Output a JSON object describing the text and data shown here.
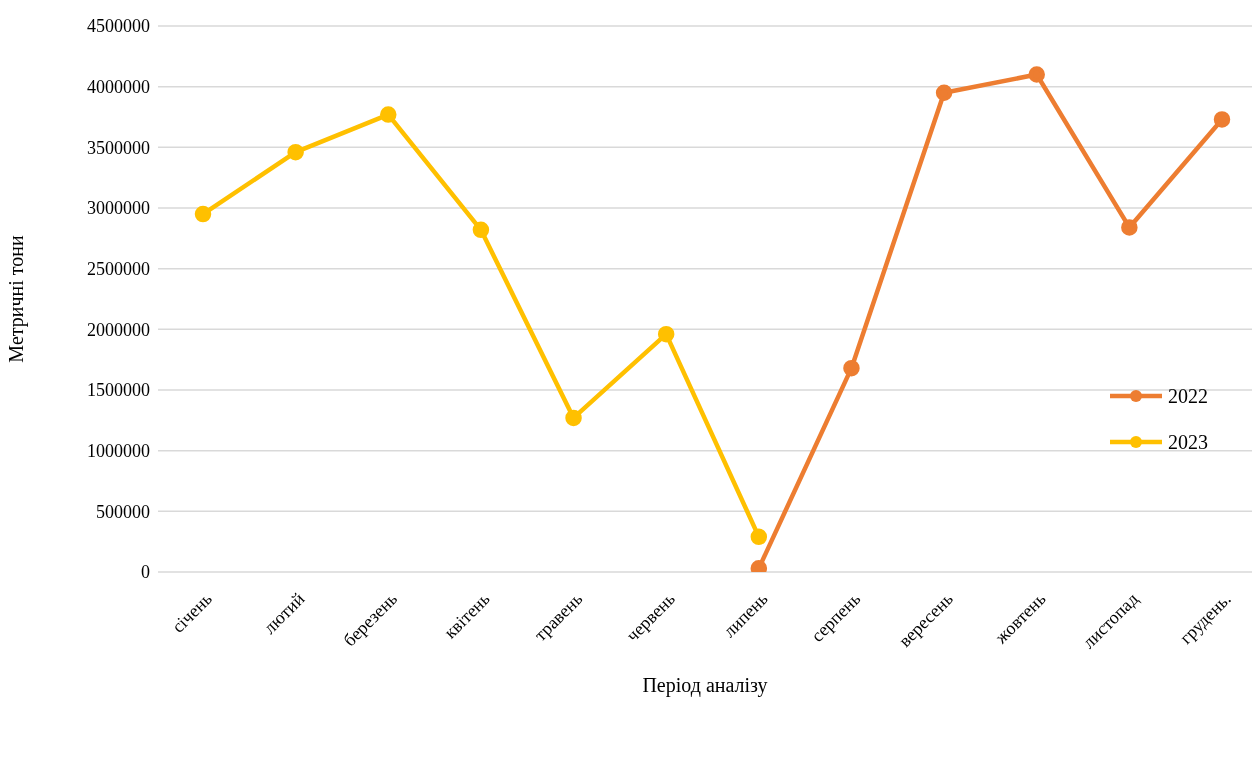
{
  "chart_data": {
    "type": "line",
    "xlabel": "Період аналізу",
    "ylabel": "Метричні тони",
    "categories": [
      "січень",
      "лютий",
      "березень",
      "квітень",
      "травень",
      "червень",
      "липень",
      "серпень",
      "вересень",
      "жовтень",
      "листопад",
      "грудень."
    ],
    "series": [
      {
        "name": "2022",
        "color": "#ed7d31",
        "values": [
          null,
          null,
          null,
          null,
          null,
          null,
          30000,
          1680000,
          3950000,
          4100000,
          2840000,
          3730000
        ]
      },
      {
        "name": "2023",
        "color": "#ffc000",
        "values": [
          2950000,
          3460000,
          3770000,
          2820000,
          1270000,
          1960000,
          290000,
          null,
          null,
          null,
          null,
          null
        ]
      }
    ],
    "ylim": [
      0,
      4500000
    ],
    "yticks": [
      0,
      500000,
      1000000,
      1500000,
      2000000,
      2500000,
      3000000,
      3500000,
      4000000,
      4500000
    ],
    "grid": "y",
    "legend": "right",
    "marker": "circle",
    "line_style": "solid"
  }
}
